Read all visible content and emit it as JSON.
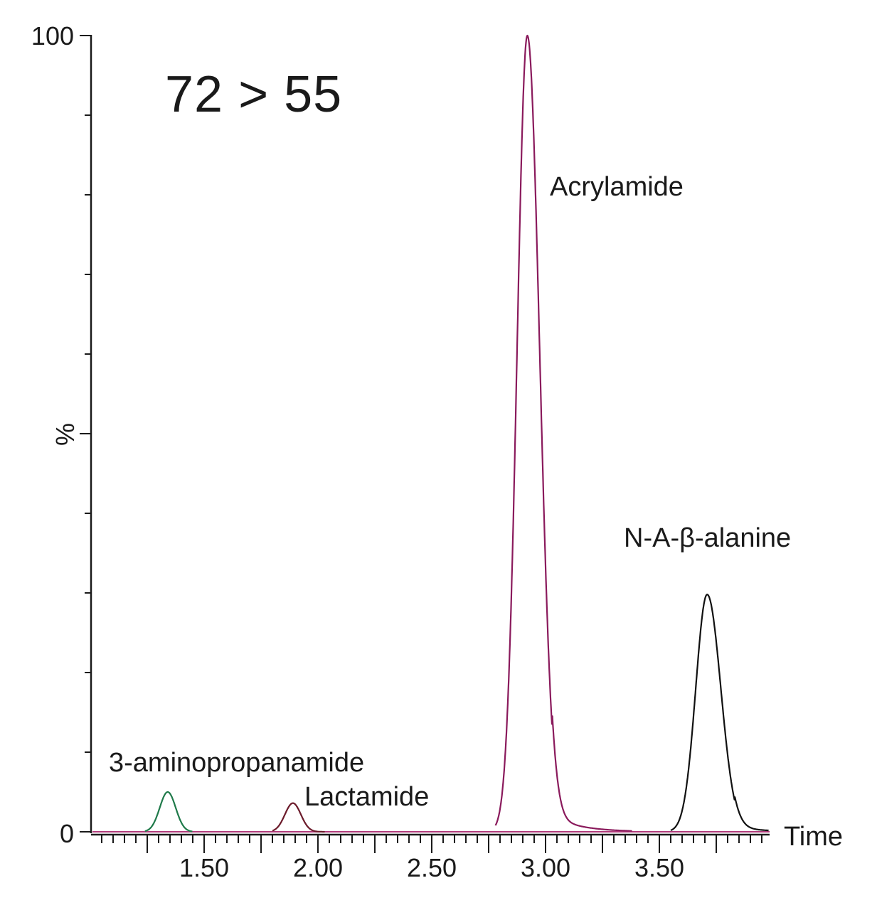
{
  "chart_data": {
    "type": "line",
    "title": "72 > 55",
    "xlabel": "Time",
    "ylabel": "%",
    "xlim": [
      1.0,
      3.98
    ],
    "ylim": [
      0,
      100
    ],
    "grid": false,
    "x_tick_labels": [
      "1.50",
      "2.00",
      "2.50",
      "3.00",
      "3.50"
    ],
    "x_tick_values": [
      1.5,
      2.0,
      2.5,
      3.0,
      3.5
    ],
    "y_tick_labels": [
      "0",
      "100"
    ],
    "y_tick_values": [
      0,
      100
    ],
    "y_minor_tick_step": 10,
    "x_major_tick_step": 0.25,
    "x_minor_tick_step": 0.05,
    "series": [
      {
        "name": "3-aminopropanamide",
        "color": "#1f7a4a",
        "peak_time": 1.34,
        "peak_height": 5.0,
        "width_sigma": 0.035,
        "range": [
          1.24,
          1.45
        ]
      },
      {
        "name": "Lactamide",
        "color": "#6b1a2a",
        "peak_time": 1.89,
        "peak_height": 3.6,
        "width_sigma": 0.035,
        "range": [
          1.8,
          2.03
        ]
      },
      {
        "name": "Acrylamide",
        "color": "#8a1a5c",
        "peak_time": 2.92,
        "peak_height": 100,
        "width_sigma": 0.045,
        "tail": true,
        "range": [
          2.78,
          3.38
        ]
      },
      {
        "name": "N-A-β-alanine",
        "color": "#111111",
        "peak_time": 3.71,
        "peak_height": 29.8,
        "width_sigma": 0.05,
        "tail": true,
        "range": [
          3.55,
          3.98
        ]
      }
    ],
    "annotations": [
      {
        "text": "3-aminopropanamide",
        "x": 1.41,
        "y": 8.5
      },
      {
        "text": "Lactamide",
        "x": 1.89,
        "y": 5.2
      },
      {
        "text": "Acrylamide",
        "x": 3.02,
        "y": 81
      },
      {
        "text": "N-A-β-alanine",
        "x": 3.35,
        "y": 37
      }
    ]
  },
  "labels": {
    "title": "72 > 55",
    "xlabel": "Time",
    "ylabel": "%",
    "ytick_top": "100",
    "ytick_bottom": "0",
    "xticks": [
      "1.50",
      "2.00",
      "2.50",
      "3.00",
      "3.50"
    ],
    "peaks": [
      "3-aminopropanamide",
      "Lactamide",
      "Acrylamide",
      "N-A-β-alanine"
    ]
  }
}
